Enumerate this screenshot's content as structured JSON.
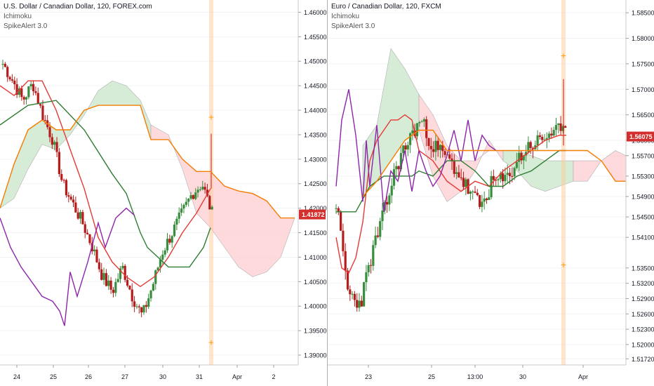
{
  "panes": [
    {
      "symbol_title": "U.S. Dollar / Canadian Dollar, 120, FOREX.com",
      "indicators": [
        "Ichimoku",
        "SpikeAlert 3.0"
      ],
      "y_ticks": [
        "1.46000",
        "1.45500",
        "1.45000",
        "1.44500",
        "1.44000",
        "1.43500",
        "1.43000",
        "1.42500",
        "1.42000",
        "1.41500",
        "1.41000",
        "1.40500",
        "1.40000",
        "1.39500",
        "1.39000"
      ],
      "y_range": [
        1.388,
        1.4625
      ],
      "x_ticks": [
        "24",
        "25",
        "26",
        "27",
        "30",
        "31",
        "Apr",
        "2"
      ],
      "last_price": "1.41872",
      "last_price_value": 1.41872,
      "price_tag_color": "#d32f2f"
    },
    {
      "symbol_title": "Euro / Canadian Dollar, 120, FXCM",
      "indicators": [
        "Ichimoku",
        "SpikeAlert 3.0"
      ],
      "y_ticks": [
        "1.58500",
        "1.58000",
        "1.57500",
        "1.57000",
        "1.56500",
        "1.56000",
        "1.55700",
        "1.55300",
        "1.54900",
        "1.54500",
        "1.54100",
        "1.53500",
        "1.53200",
        "1.52900",
        "1.52600",
        "1.52300",
        "1.52000",
        "1.51720"
      ],
      "y_range": [
        1.516,
        1.5875
      ],
      "x_ticks": [
        "23",
        "25",
        "13:00",
        "30",
        "Apr"
      ],
      "last_price": "1.56075",
      "last_price_value": 1.56075,
      "price_tag_color": "#d32f2f"
    }
  ],
  "colors": {
    "up_candle": "#388e3c",
    "down_candle": "#b71c1c",
    "tenkan": "#e53935",
    "kijun": "#2e7d32",
    "chikou": "#8e24aa",
    "senkou_a": "#f57c00",
    "cloud_bull": "#c8e6c9",
    "cloud_bear": "#ffcdd2",
    "spike_band": "#ffcc99",
    "spike_marker": "#ff9800",
    "axis_text": "#131722",
    "grid": "#f0f3f6"
  }
}
